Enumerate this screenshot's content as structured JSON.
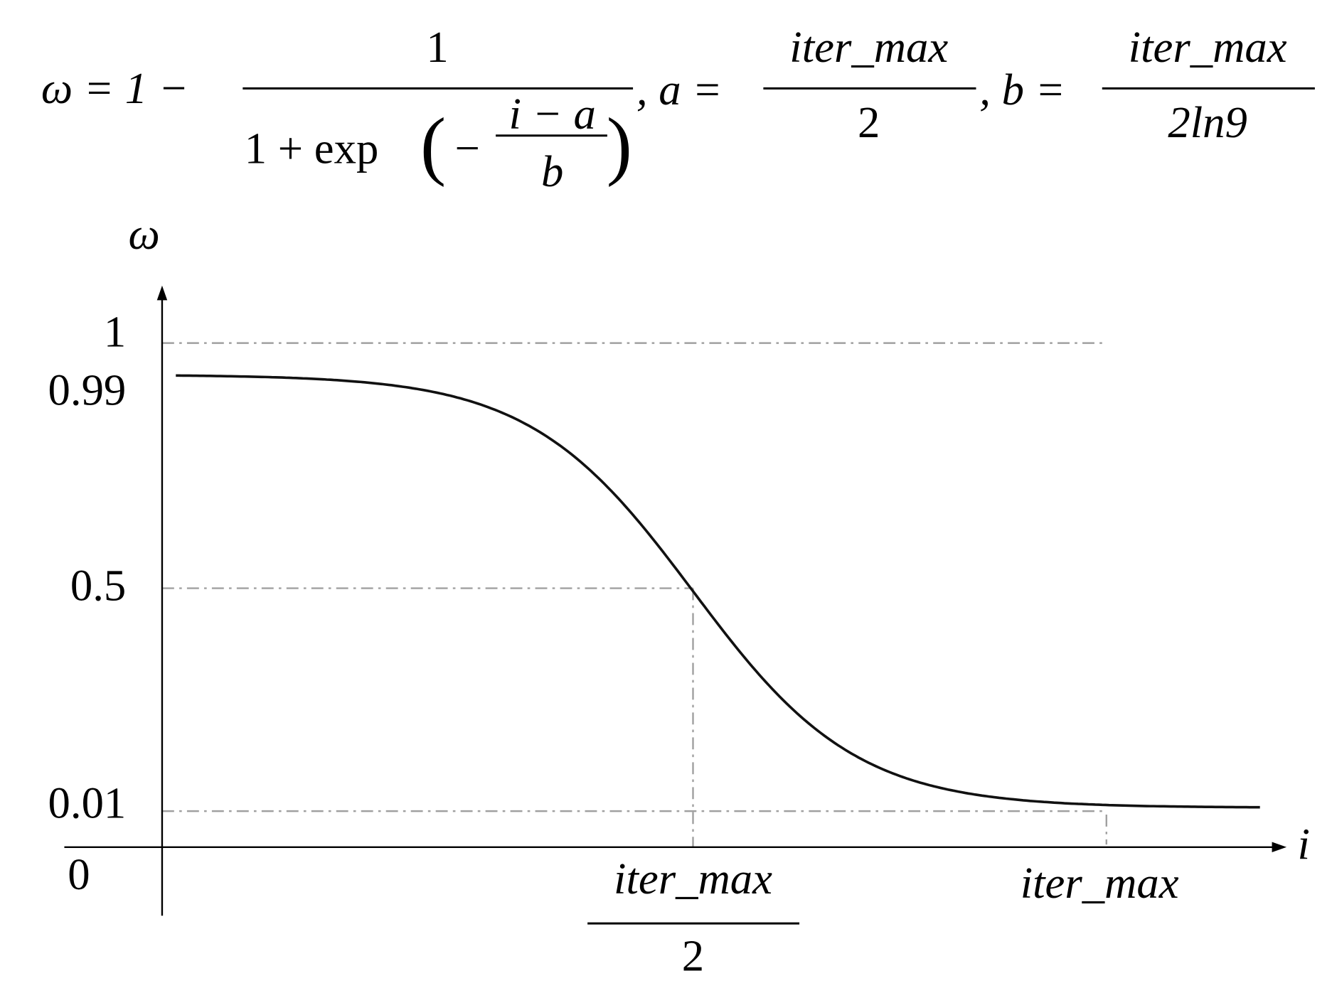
{
  "formula": {
    "lhs": "ω = 1 −",
    "numerator": "1",
    "denominator_prefix": "1 + exp",
    "paren_open": "(",
    "inner_sign": "−",
    "inner_numerator": "i − a",
    "inner_denominator": "b",
    "paren_close": ")",
    "a_label": ", a =",
    "a_numerator": "iter_max",
    "a_denominator": "2",
    "b_label": ", b =",
    "b_numerator": "iter_max",
    "b_denominator": "2ln9"
  },
  "axes": {
    "y_label": "ω",
    "x_label": "i",
    "origin": "0",
    "y_ticks": [
      "1",
      "0.99",
      "0.5",
      "0.01"
    ],
    "x_tick_half_numerator": "iter_max",
    "x_tick_half_denominator": "2",
    "x_tick_max": "iter_max"
  }
}
